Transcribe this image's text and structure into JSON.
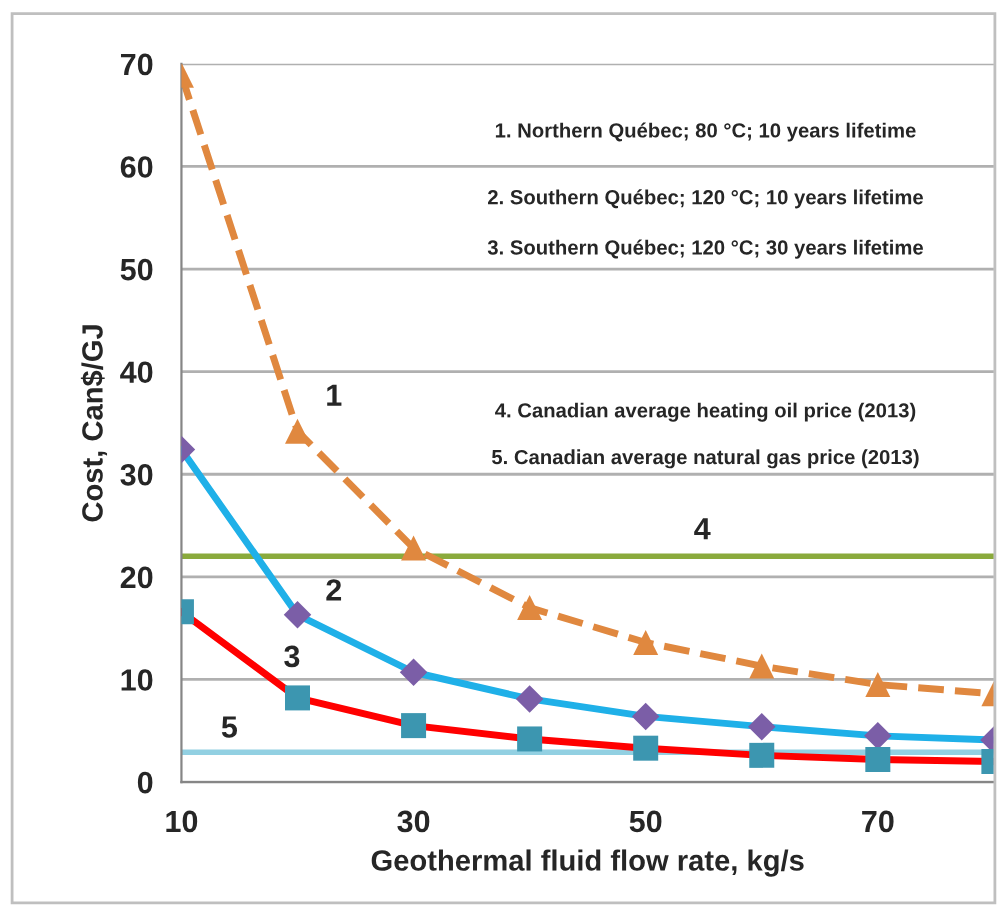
{
  "chart_data": {
    "type": "line",
    "xlabel": "Geothermal fluid flow rate, kg/s",
    "ylabel": "Cost, Can$/GJ",
    "x": [
      10,
      20,
      30,
      40,
      50,
      60,
      70,
      80
    ],
    "series": [
      {
        "name": "1",
        "color": "#e0883f",
        "colors": [
          "#e0883f",
          "#e0883f",
          "#e0883f",
          "#e0883f",
          "#e0883f",
          "#e0883f",
          "#e0883f",
          "#e0883f"
        ],
        "marker": "triangle",
        "line_style": "dashed",
        "values": [
          68.9,
          34.2,
          22.8,
          17.0,
          13.6,
          11.3,
          9.5,
          8.6
        ]
      },
      {
        "name": "2",
        "color": "#1fb0e8",
        "colors": [
          "#7b5ea7",
          "#7b5ea7",
          "#7b5ea7",
          "#7b5ea7",
          "#7b5ea7",
          "#7b5ea7",
          "#7b5ea7",
          "#7b5ea7"
        ],
        "marker": "diamond",
        "line_style": "solid",
        "values": [
          32.4,
          16.3,
          10.7,
          8.1,
          6.4,
          5.4,
          4.5,
          4.1
        ]
      },
      {
        "name": "3",
        "color": "#ff0000",
        "colors": [
          "#3c96b0",
          "#3c96b0",
          "#3c96b0",
          "#3c96b0",
          "#3c96b0",
          "#3c96b0",
          "#3c96b0",
          "#3c96b0"
        ],
        "marker": "square",
        "line_style": "solid",
        "values": [
          16.6,
          8.2,
          5.5,
          4.2,
          3.3,
          2.6,
          2.2,
          2.0
        ]
      }
    ],
    "ref_lines": [
      {
        "axis": "y",
        "value": 22.0,
        "color": "#8aaa3c"
      },
      {
        "axis": "y",
        "value": 2.9,
        "color": "#92d0e2"
      }
    ],
    "annotations": [
      "1. Northern Québec; 80 °C; 10 years lifetime",
      "2. Southern Québec; 120 °C; 10 years lifetime",
      "3. Southern Québec; 120 °C; 30 years lifetime",
      "4. Canadian average heating oil price (2013)",
      "5. Canadian average natural gas price (2013)",
      "4",
      "5"
    ],
    "xlim": [
      10,
      80
    ],
    "xticks": [
      10,
      30,
      50,
      70
    ],
    "ylim": [
      0,
      70
    ],
    "yticks": [
      0,
      10,
      20,
      30,
      40,
      50,
      60,
      70
    ],
    "grid": "y",
    "legend": false
  }
}
